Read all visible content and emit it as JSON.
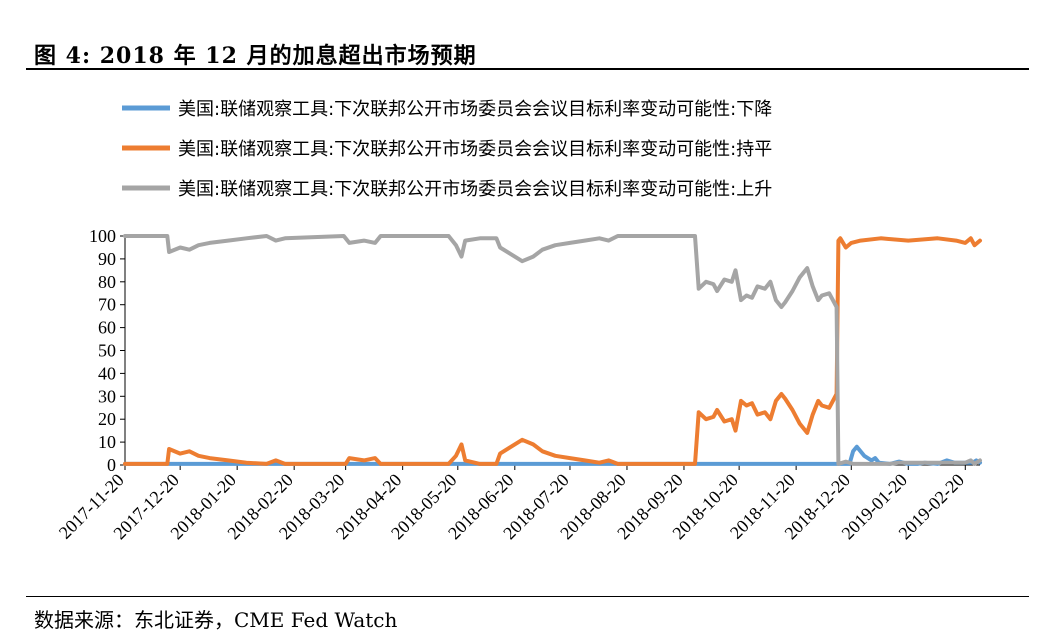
{
  "figure": {
    "title": "图 4: 2018 年 12 月的加息超出市场预期",
    "source": "数据来源：东北证券，CME Fed Watch"
  },
  "chart_data": {
    "type": "line",
    "ylim": [
      0,
      100
    ],
    "yticks": [
      0,
      10,
      20,
      30,
      40,
      50,
      60,
      70,
      80,
      90,
      100
    ],
    "xlim": [
      "2017-11-20",
      "2019-02-28"
    ],
    "xticks": [
      "2017-11-20",
      "2017-12-20",
      "2018-01-20",
      "2018-02-20",
      "2018-03-20",
      "2018-04-20",
      "2018-05-20",
      "2018-06-20",
      "2018-07-20",
      "2018-08-20",
      "2018-09-20",
      "2018-10-20",
      "2018-11-20",
      "2018-12-20",
      "2019-01-20",
      "2019-02-20"
    ],
    "legend_position": "top",
    "grid": false,
    "series": [
      {
        "name": "美国:联储观察工具:下次联邦公开市场委员会会议目标利率变动可能性:下降",
        "color": "#5B9BD5",
        "points": [
          [
            "2017-11-20",
            0.5
          ],
          [
            "2018-12-19",
            0.5
          ],
          [
            "2018-12-21",
            6
          ],
          [
            "2018-12-23",
            8
          ],
          [
            "2018-12-27",
            4
          ],
          [
            "2018-12-31",
            2
          ],
          [
            "2019-01-02",
            3
          ],
          [
            "2019-01-04",
            1
          ],
          [
            "2019-01-10",
            0.5
          ],
          [
            "2019-01-15",
            1.5
          ],
          [
            "2019-01-20",
            0.5
          ],
          [
            "2019-01-25",
            0.5
          ],
          [
            "2019-01-29",
            1
          ],
          [
            "2019-02-05",
            0.5
          ],
          [
            "2019-02-10",
            2
          ],
          [
            "2019-02-14",
            1
          ],
          [
            "2019-02-20",
            1
          ],
          [
            "2019-02-24",
            1
          ],
          [
            "2019-02-26",
            2
          ],
          [
            "2019-02-28",
            1
          ]
        ]
      },
      {
        "name": "美国:联储观察工具:下次联邦公开市场委员会会议目标利率变动可能性:持平",
        "color": "#ED7D31",
        "points": [
          [
            "2017-11-20",
            0.5
          ],
          [
            "2017-12-13",
            0.5
          ],
          [
            "2017-12-14",
            7
          ],
          [
            "2017-12-20",
            5
          ],
          [
            "2017-12-25",
            6
          ],
          [
            "2017-12-30",
            4
          ],
          [
            "2018-01-05",
            3
          ],
          [
            "2018-01-15",
            2
          ],
          [
            "2018-01-25",
            1
          ],
          [
            "2018-02-05",
            0.5
          ],
          [
            "2018-02-10",
            2
          ],
          [
            "2018-02-15",
            0.5
          ],
          [
            "2018-03-20",
            0.5
          ],
          [
            "2018-03-22",
            3
          ],
          [
            "2018-03-30",
            2
          ],
          [
            "2018-04-05",
            3
          ],
          [
            "2018-04-08",
            0.5
          ],
          [
            "2018-05-15",
            0.5
          ],
          [
            "2018-05-19",
            4
          ],
          [
            "2018-05-22",
            9
          ],
          [
            "2018-05-24",
            2
          ],
          [
            "2018-06-01",
            0.5
          ],
          [
            "2018-06-10",
            0.5
          ],
          [
            "2018-06-12",
            5
          ],
          [
            "2018-06-18",
            8
          ],
          [
            "2018-06-24",
            11
          ],
          [
            "2018-06-30",
            9
          ],
          [
            "2018-07-05",
            6
          ],
          [
            "2018-07-12",
            4
          ],
          [
            "2018-07-20",
            3
          ],
          [
            "2018-07-28",
            2
          ],
          [
            "2018-08-05",
            1
          ],
          [
            "2018-08-10",
            2
          ],
          [
            "2018-08-15",
            0.5
          ],
          [
            "2018-09-26",
            0.5
          ],
          [
            "2018-09-28",
            23
          ],
          [
            "2018-10-02",
            20
          ],
          [
            "2018-10-06",
            21
          ],
          [
            "2018-10-08",
            24
          ],
          [
            "2018-10-12",
            19
          ],
          [
            "2018-10-16",
            20
          ],
          [
            "2018-10-18",
            15
          ],
          [
            "2018-10-21",
            28
          ],
          [
            "2018-10-24",
            26
          ],
          [
            "2018-10-27",
            27
          ],
          [
            "2018-10-30",
            22
          ],
          [
            "2018-11-03",
            23
          ],
          [
            "2018-11-06",
            20
          ],
          [
            "2018-11-09",
            28
          ],
          [
            "2018-11-12",
            31
          ],
          [
            "2018-11-14",
            29
          ],
          [
            "2018-11-18",
            24
          ],
          [
            "2018-11-22",
            18
          ],
          [
            "2018-11-26",
            14
          ],
          [
            "2018-11-29",
            22
          ],
          [
            "2018-12-02",
            28
          ],
          [
            "2018-12-04",
            26
          ],
          [
            "2018-12-08",
            25
          ],
          [
            "2018-12-12",
            31
          ],
          [
            "2018-12-13",
            98
          ],
          [
            "2018-12-14",
            99
          ],
          [
            "2018-12-17",
            95
          ],
          [
            "2018-12-20",
            97
          ],
          [
            "2018-12-25",
            98
          ],
          [
            "2019-01-05",
            99
          ],
          [
            "2019-01-20",
            98
          ],
          [
            "2019-02-05",
            99
          ],
          [
            "2019-02-15",
            98
          ],
          [
            "2019-02-20",
            97
          ],
          [
            "2019-02-23",
            99
          ],
          [
            "2019-02-25",
            96
          ],
          [
            "2019-02-28",
            98
          ]
        ]
      },
      {
        "name": "美国:联储观察工具:下次联邦公开市场委员会会议目标利率变动可能性:上升",
        "color": "#A5A5A5",
        "points": [
          [
            "2017-11-20",
            100
          ],
          [
            "2017-12-13",
            100
          ],
          [
            "2017-12-14",
            93
          ],
          [
            "2017-12-20",
            95
          ],
          [
            "2017-12-25",
            94
          ],
          [
            "2017-12-30",
            96
          ],
          [
            "2018-01-05",
            97
          ],
          [
            "2018-01-15",
            98
          ],
          [
            "2018-01-25",
            99
          ],
          [
            "2018-02-05",
            100
          ],
          [
            "2018-02-10",
            98
          ],
          [
            "2018-02-15",
            99
          ],
          [
            "2018-03-19",
            100
          ],
          [
            "2018-03-22",
            97
          ],
          [
            "2018-03-30",
            98
          ],
          [
            "2018-04-05",
            97
          ],
          [
            "2018-04-08",
            100
          ],
          [
            "2018-05-15",
            100
          ],
          [
            "2018-05-19",
            96
          ],
          [
            "2018-05-22",
            91
          ],
          [
            "2018-05-24",
            98
          ],
          [
            "2018-06-01",
            99
          ],
          [
            "2018-06-10",
            99
          ],
          [
            "2018-06-12",
            95
          ],
          [
            "2018-06-18",
            92
          ],
          [
            "2018-06-24",
            89
          ],
          [
            "2018-06-30",
            91
          ],
          [
            "2018-07-05",
            94
          ],
          [
            "2018-07-12",
            96
          ],
          [
            "2018-07-20",
            97
          ],
          [
            "2018-07-28",
            98
          ],
          [
            "2018-08-05",
            99
          ],
          [
            "2018-08-10",
            98
          ],
          [
            "2018-08-15",
            100
          ],
          [
            "2018-09-26",
            100
          ],
          [
            "2018-09-28",
            77
          ],
          [
            "2018-10-02",
            80
          ],
          [
            "2018-10-06",
            79
          ],
          [
            "2018-10-08",
            76
          ],
          [
            "2018-10-12",
            81
          ],
          [
            "2018-10-16",
            80
          ],
          [
            "2018-10-18",
            85
          ],
          [
            "2018-10-21",
            72
          ],
          [
            "2018-10-24",
            74
          ],
          [
            "2018-10-27",
            73
          ],
          [
            "2018-10-30",
            78
          ],
          [
            "2018-11-03",
            77
          ],
          [
            "2018-11-06",
            80
          ],
          [
            "2018-11-09",
            72
          ],
          [
            "2018-11-12",
            69
          ],
          [
            "2018-11-14",
            71
          ],
          [
            "2018-11-18",
            76
          ],
          [
            "2018-11-22",
            82
          ],
          [
            "2018-11-26",
            86
          ],
          [
            "2018-11-29",
            78
          ],
          [
            "2018-12-02",
            72
          ],
          [
            "2018-12-04",
            74
          ],
          [
            "2018-12-08",
            75
          ],
          [
            "2018-12-12",
            69
          ],
          [
            "2018-12-13",
            0.5
          ],
          [
            "2018-12-17",
            1.5
          ],
          [
            "2018-12-21",
            0.5
          ],
          [
            "2019-01-10",
            0.5
          ],
          [
            "2019-01-15",
            1
          ],
          [
            "2019-02-20",
            1
          ],
          [
            "2019-02-23",
            2
          ],
          [
            "2019-02-25",
            0.5
          ],
          [
            "2019-02-28",
            2
          ]
        ]
      }
    ]
  }
}
